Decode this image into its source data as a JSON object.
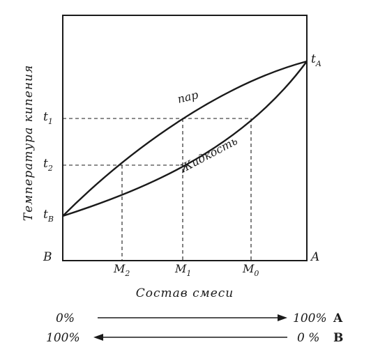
{
  "axis": {
    "y_title": "Температура кипения",
    "x_title": "Состав смеси"
  },
  "corners": {
    "left_bottom": "B",
    "right_bottom": "A"
  },
  "temperature_ticks": {
    "t1": "t",
    "t1_sub": "1",
    "t2": "t",
    "t2_sub": "2",
    "tB": "t",
    "tB_sub": "B",
    "tA": "t",
    "tA_sub": "A"
  },
  "composition_ticks": {
    "m2": "M",
    "m2_sub": "2",
    "m1": "M",
    "m1_sub": "1",
    "m0": "M",
    "m0_sub": "0"
  },
  "curves": {
    "vapor": "пар",
    "liquid": "Жидкость"
  },
  "scale": {
    "row1_left": "0%",
    "row1_right_num": "100%",
    "row1_right_letter": "A",
    "row2_left": "100%",
    "row2_right_num": "0 %",
    "row2_right_letter": "B"
  }
}
